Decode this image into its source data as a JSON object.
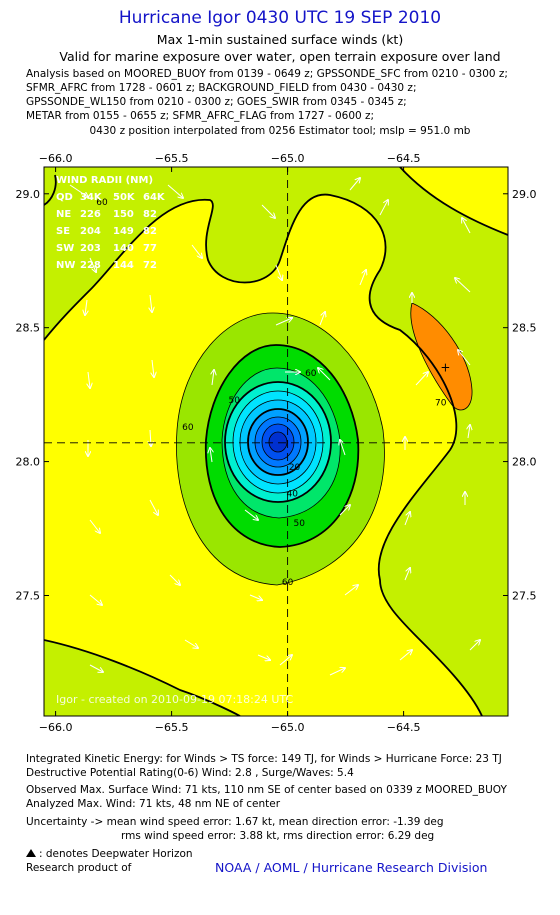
{
  "header": {
    "title": "Hurricane Igor 0430 UTC 19 SEP 2010",
    "subtitle1": "Max 1-min sustained surface winds (kt)",
    "subtitle2": "Valid for marine exposure over water, open terrain exposure over land",
    "analysis_lines": [
      "Analysis based on MOORED_BUOY from 0139 - 0649 z; GPSSONDE_SFC from 0210 - 0300 z;",
      "SFMR_AFRC from 1728 - 0601 z; BACKGROUND_FIELD from 0430 - 0430 z;",
      "GPSSONDE_WL150 from 0210 - 0300 z; GOES_SWIR from 0345 - 0345 z;",
      "METAR from 0155 - 0655 z; SFMR_AFRC_FLAG from 1727 - 0600 z;"
    ],
    "position_note": "0430 z position interpolated from 0256 Estimator tool; mslp = 951.0 mb"
  },
  "chart_data": {
    "type": "contour",
    "x_ticks": [
      "-66.0",
      "-65.5",
      "-65.0",
      "-64.5"
    ],
    "y_ticks": [
      "29.0",
      "28.5",
      "28.0",
      "27.5"
    ],
    "xlim": [
      -66.05,
      -64.05
    ],
    "ylim": [
      27.05,
      29.1
    ],
    "center": {
      "lon": -65.0,
      "lat": 28.07
    },
    "max_wind_marker": {
      "lon": -64.32,
      "lat": 28.35,
      "symbol": "+"
    },
    "contour_labels": [
      {
        "text": "60",
        "lon": -65.8,
        "lat": 28.97
      },
      {
        "text": "60",
        "lon": -64.9,
        "lat": 28.33
      },
      {
        "text": "60",
        "lon": -65.43,
        "lat": 28.13
      },
      {
        "text": "60",
        "lon": -65.0,
        "lat": 27.55
      },
      {
        "text": "50",
        "lon": -65.23,
        "lat": 28.23
      },
      {
        "text": "50",
        "lon": -64.95,
        "lat": 27.77
      },
      {
        "text": "40",
        "lon": -64.98,
        "lat": 27.88
      },
      {
        "text": "20",
        "lon": -64.97,
        "lat": 27.98
      },
      {
        "text": "70",
        "lon": -64.34,
        "lat": 28.22
      }
    ],
    "wind_radii": {
      "header": "WIND RADII (NM)",
      "rows": [
        [
          "QD",
          "34K",
          "50K",
          "64K"
        ],
        [
          "NE",
          "226",
          "150",
          "82"
        ],
        [
          "SE",
          "204",
          "149",
          "82"
        ],
        [
          "SW",
          "203",
          "140",
          "77"
        ],
        [
          "NW",
          "228",
          "144",
          "72"
        ]
      ]
    },
    "created_label": "Igor - created on 2010-09-19 07:18:24 UTC",
    "colors": {
      "bg_yellow": "#ffff00",
      "light_green": "#c4f000",
      "green2": "#9ae600",
      "green3": "#00dc00",
      "cyan": "#00ffff",
      "blue": "#0044ff",
      "orange": "#ff8c00"
    }
  },
  "footer": {
    "ike": "Integrated Kinetic Energy:  for Winds > TS force: 149 TJ,  for Winds > Hurricane Force: 23 TJ",
    "dpr": "Destructive Potential Rating(0-6)   Wind: 2.8 , Surge/Waves: 5.4",
    "observed_max": "Observed Max. Surface Wind: 71 kts, 110 nm SE of center based on 0339 z MOORED_BUOY",
    "analyzed_max": "Analyzed Max. Wind: 71 kts, 48 nm NE of center",
    "uncertainty1": "Uncertainty -> mean wind speed error: 1.67 kt,   mean direction error:  -1.39 deg",
    "uncertainty2": "rms wind speed error: 3.88 kt,   rms direction error: 6.29 deg",
    "dwh_note": ": denotes Deepwater Horizon",
    "research": "Research product of",
    "noaa": "NOAA / AOML / Hurricane Research Division"
  }
}
